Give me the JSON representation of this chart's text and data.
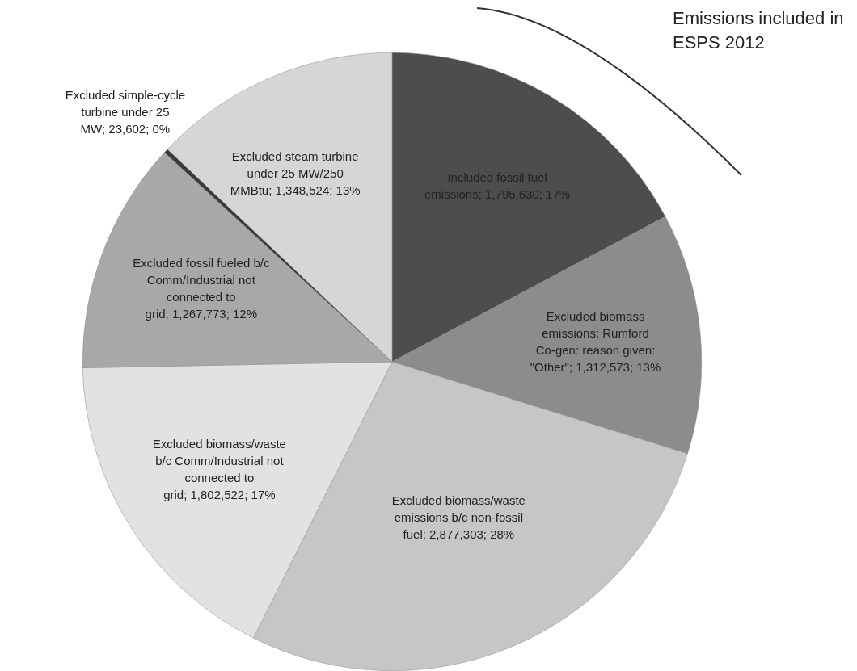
{
  "chart_data": {
    "type": "pie",
    "categories": [
      "Included fossil fuel emissions",
      "Excluded biomass emissions: Rumford Co-gen: reason given: \"Other\"",
      "Excluded biomass/waste emissions b/c non-fossil fuel",
      "Excluded biomass/waste b/c Comm/Industrial not connected to grid",
      "Excluded fossil fueled b/c Comm/Industrial not connected to grid",
      "Excluded simple-cycle turbine under 25 MW",
      "Excluded steam turbine under 25 MW/250 MMBtu"
    ],
    "values": [
      1795630,
      1312573,
      2877303,
      1802522,
      1267773,
      23602,
      1348524
    ],
    "value_labels": [
      "1,795,630; 17%",
      "1,312,573; 13%",
      "2,877,303; 28%",
      "1,802,522; 17%",
      "1,267,773; 12%",
      "23,602; 0%",
      "1,348,524; 13%"
    ],
    "colors": [
      "#4d4d4d",
      "#8c8c8c",
      "#c6c6c6",
      "#e2e2e2",
      "#a8a8a8",
      "#3a3a3a",
      "#d6d6d6"
    ],
    "annotations": [
      "Emissions included in ESPS 2012"
    ],
    "legend": false
  }
}
